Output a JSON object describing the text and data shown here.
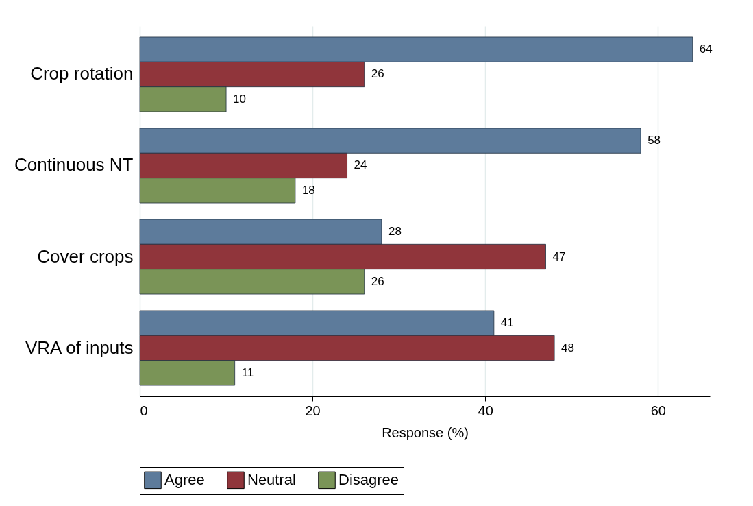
{
  "chart_data": {
    "type": "bar",
    "orientation": "horizontal",
    "xlabel": "Response (%)",
    "categories": [
      "Crop rotation",
      "Continuous NT",
      "Cover crops",
      "VRA of inputs"
    ],
    "series": [
      {
        "name": "Agree",
        "color": "#5d7b9b",
        "values": [
          64,
          58,
          28,
          41
        ]
      },
      {
        "name": "Neutral",
        "color": "#90353b",
        "values": [
          26,
          24,
          47,
          48
        ]
      },
      {
        "name": "Disagree",
        "color": "#7a9457",
        "values": [
          10,
          18,
          26,
          11
        ]
      }
    ],
    "xlim": [
      0,
      66
    ],
    "xticks": [
      0,
      20,
      40,
      60
    ],
    "grid": "x",
    "legend": "bottom",
    "data_labels": true
  }
}
